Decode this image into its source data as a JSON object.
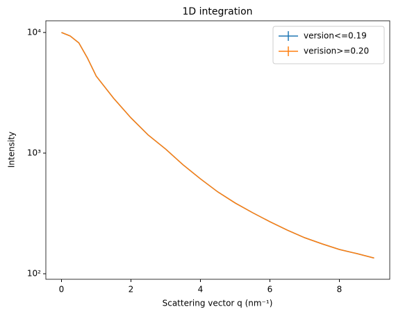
{
  "chart_data": {
    "type": "line",
    "title": "1D integration",
    "x_label": "Scattering vector q (nm⁻¹)",
    "y_label": "Intensity",
    "x": [
      0,
      0.25,
      0.5,
      0.75,
      1,
      1.5,
      2,
      2.5,
      3,
      3.5,
      4,
      4.5,
      5,
      5.5,
      6,
      6.5,
      7,
      7.5,
      8,
      8.5,
      9
    ],
    "series": [
      {
        "name": "version<=0.19",
        "color": "#1f77b4",
        "values": [
          10000,
          9360,
          8200,
          6120,
          4350,
          2850,
          1960,
          1410,
          1080,
          800,
          612,
          477,
          386,
          321,
          270,
          230,
          199,
          177,
          159,
          147,
          135
        ]
      },
      {
        "name": "verision>=0.20",
        "color": "#ff7f0e",
        "values": [
          10000,
          9360,
          8200,
          6120,
          4350,
          2850,
          1960,
          1410,
          1080,
          800,
          612,
          477,
          386,
          321,
          270,
          230,
          199,
          177,
          159,
          147,
          135
        ]
      }
    ],
    "xlim": [
      -0.45,
      9.45
    ],
    "xticks": [
      0,
      2,
      4,
      6,
      8
    ],
    "ylim": [
      90,
      12500
    ],
    "yscale": "log",
    "yticks": [
      {
        "value": 100,
        "label": "10²"
      },
      {
        "value": 1000,
        "label": "10³"
      },
      {
        "value": 10000,
        "label": "10⁴"
      }
    ],
    "legend": "upper right"
  }
}
